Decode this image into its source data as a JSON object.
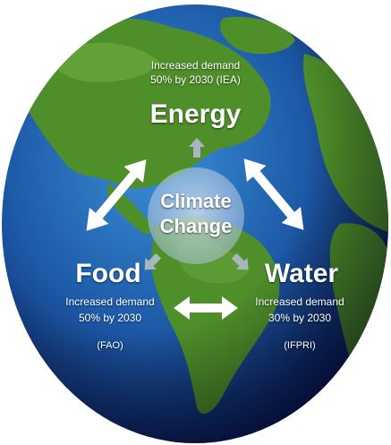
{
  "nodes": {
    "energy": {
      "title": "Energy",
      "demand_line1": "Increased demand",
      "demand_line2": "50% by 2030 (IEA)"
    },
    "food": {
      "title": "Food",
      "demand_line1": "Increased demand",
      "demand_line2": "50% by 2030",
      "source": "(FAO)"
    },
    "water": {
      "title": "Water",
      "demand_line1": "Increased demand",
      "demand_line2": "30% by 2030",
      "source": "(IFPRI)"
    }
  },
  "center": {
    "line1": "Climate",
    "line2": "Change"
  },
  "colors": {
    "ocean_light": "#2f7fc4",
    "ocean_dark": "#0b1f5c",
    "land": "#4f8f2a",
    "land_dark": "#2d6a1f",
    "text": "#ffffff",
    "center_bubble": "#c7d6e6",
    "inner_arrow": "#a9b6c2"
  },
  "icons": {
    "double_arrow": "double-headed-arrow-icon",
    "inner_arrow": "arrow-icon"
  }
}
